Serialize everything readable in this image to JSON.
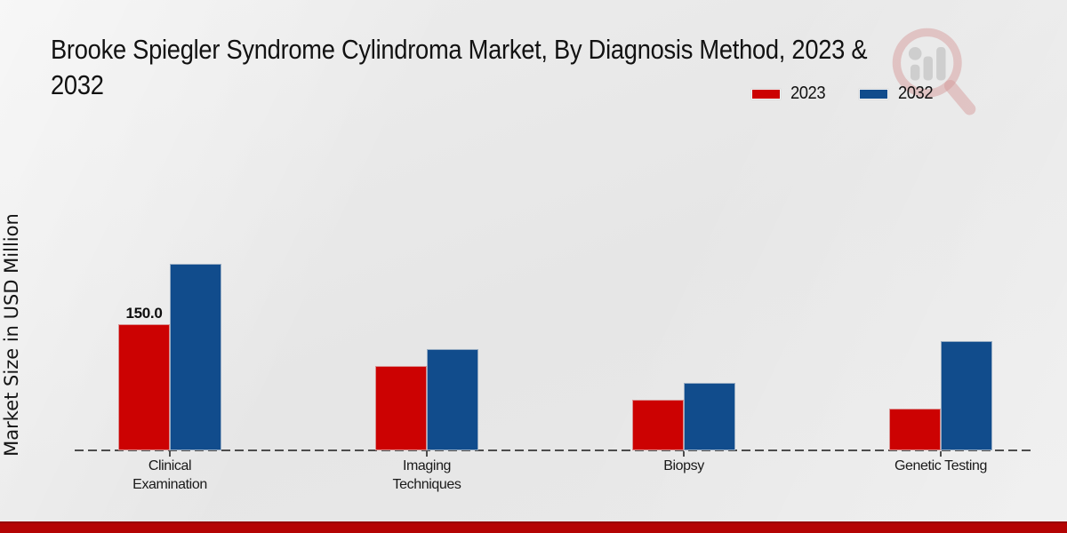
{
  "page": {
    "title_line1": "Brooke Spiegler Syndrome Cylindroma Market, By Diagnosis Method, 2023 &",
    "title_line2": "2032"
  },
  "chart_data": {
    "type": "bar",
    "title": "Brooke Spiegler Syndrome Cylindroma Market, By Diagnosis Method, 2023 & 2032",
    "xlabel": "",
    "ylabel": "Market Size in USD Million",
    "categories": [
      "Clinical Examination",
      "Imaging Techniques",
      "Biopsy",
      "Genetic Testing"
    ],
    "series": [
      {
        "name": "2023",
        "color": "#cc0202",
        "values": [
          150.0,
          100.0,
          60.0,
          50.0
        ]
      },
      {
        "name": "2032",
        "color": "#114c8c",
        "values": [
          222.0,
          120.0,
          80.0,
          130.0
        ]
      }
    ],
    "annotations": [
      {
        "series": "2023",
        "category": "Clinical Examination",
        "text": "150.0"
      }
    ],
    "ylim": [
      0,
      240
    ],
    "grid": false,
    "axis_style": "dashed-baseline-only",
    "legend_position": "top-right"
  },
  "legend": {
    "items": [
      {
        "label": "2023",
        "color": "#cc0202"
      },
      {
        "label": "2032",
        "color": "#114c8c"
      }
    ]
  },
  "watermark": {
    "name": "magnifier-bar-chart-logo"
  },
  "colors": {
    "series_2023": "#cc0202",
    "series_2032": "#114c8c",
    "footer_accent": "#b40404",
    "baseline": "#4d4d4d",
    "background": "#e9e9e9"
  }
}
